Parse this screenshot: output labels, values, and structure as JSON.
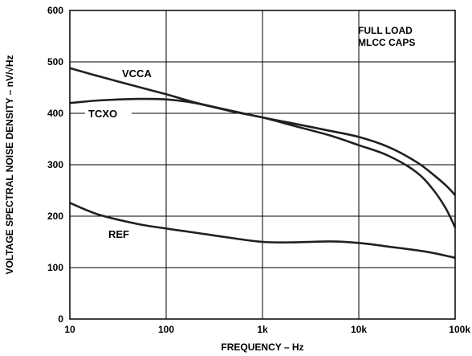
{
  "chart_data": {
    "type": "line",
    "xscale": "log",
    "xlabel": "FREQUENCY – Hz",
    "ylabel": "VOLTAGE SPECTRAL NOISE DENSITY – nV/√Hz",
    "xlim": [
      10,
      100000
    ],
    "ylim": [
      0,
      600
    ],
    "grid": true,
    "xticks": [
      10,
      100,
      1000,
      10000,
      100000
    ],
    "xtick_labels": [
      "10",
      "100",
      "1k",
      "10k",
      "100k"
    ],
    "yticks": [
      0,
      100,
      200,
      300,
      400,
      500,
      600
    ],
    "ytick_labels": [
      "0",
      "100",
      "200",
      "300",
      "400",
      "500",
      "600"
    ],
    "annotation": [
      "FULL LOAD",
      "MLCC CAPS"
    ],
    "series": [
      {
        "name": "VCCA",
        "x": [
          10,
          20,
          50,
          100,
          200,
          500,
          1000,
          2000,
          5000,
          10000,
          20000,
          40000,
          60000,
          80000,
          100000
        ],
        "y": [
          488,
          472,
          452,
          437,
          421,
          404,
          392,
          381,
          366,
          354,
          335,
          305,
          280,
          260,
          241
        ]
      },
      {
        "name": "TCXO",
        "x": [
          10,
          20,
          50,
          100,
          200,
          500,
          1000,
          2000,
          5000,
          10000,
          20000,
          40000,
          60000,
          80000,
          100000
        ],
        "y": [
          420,
          425,
          428,
          427,
          420,
          403,
          392,
          377,
          357,
          338,
          318,
          285,
          250,
          215,
          178
        ]
      },
      {
        "name": "REF",
        "x": [
          10,
          20,
          50,
          100,
          200,
          500,
          1000,
          2000,
          5000,
          10000,
          20000,
          50000,
          100000
        ],
        "y": [
          226,
          203,
          185,
          176,
          168,
          157,
          150,
          149,
          151,
          148,
          141,
          131,
          119
        ]
      }
    ]
  }
}
